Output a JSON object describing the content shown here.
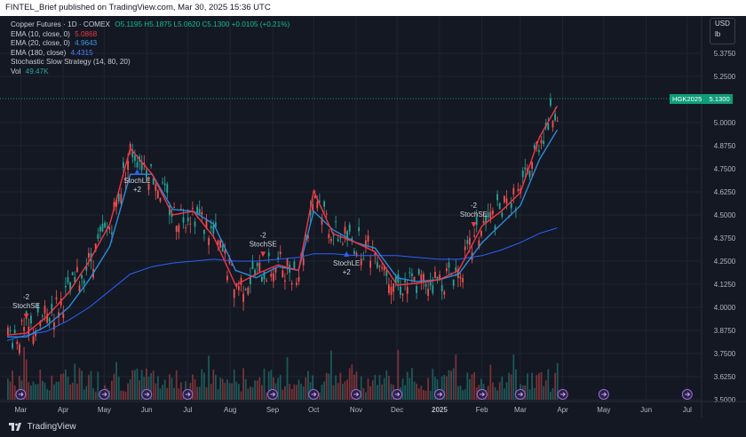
{
  "header": {
    "published_line": "FINTEL_Brief published on TradingView.com, Mar 30, 2025 15:36 UTC"
  },
  "legend": {
    "symbol": {
      "label": "Copper Futures · 1D · COMEX",
      "ohlc": "O5.1195 H5.1875 L5.0620 C5.1300 +0.0105 (+0.21%)"
    },
    "ema10": {
      "label": "EMA (10, close, 0)",
      "value": "5.0868",
      "color": "#f23645"
    },
    "ema20": {
      "label": "EMA (20, close, 0)",
      "value": "4.9643",
      "color": "#2b8bd8"
    },
    "ema180": {
      "label": "EMA (180, close)",
      "value": "4.4315",
      "color": "#2962ff"
    },
    "strategy": {
      "label": "Stochastic Slow Strategy (14, 80, 20)"
    },
    "volume": {
      "label": "Vol",
      "value": "49.47K",
      "color": "#26a69a"
    }
  },
  "unit": {
    "currency": "USD",
    "unit": "lb"
  },
  "price_tag": {
    "symbol": "HGK2025",
    "value": "5.1300",
    "color": "#0f9d79"
  },
  "footer": {
    "brand": "TradingView"
  },
  "signals": [
    {
      "qty": "-2",
      "label": "StochSE"
    },
    {
      "label": "StochLE",
      "qty": "+2"
    },
    {
      "qty": "-2",
      "label": "StochSE"
    },
    {
      "label": "StochLE",
      "qty": "+2"
    },
    {
      "qty": "-2",
      "label": "StochSE"
    }
  ],
  "chart_data": {
    "type": "line",
    "y_ticks": [
      "5.3750",
      "5.2500",
      "5.0000",
      "4.8750",
      "4.7500",
      "4.6250",
      "4.5000",
      "4.3750",
      "4.2500",
      "4.1250",
      "4.0000",
      "3.8750",
      "3.7500",
      "3.6250",
      "3.5000"
    ],
    "x_ticks": [
      "Mar",
      "Apr",
      "May",
      "Jun",
      "Jul",
      "Aug",
      "Sep",
      "Oct",
      "Nov",
      "Dec",
      "2025",
      "Feb",
      "Mar",
      "Apr",
      "May",
      "Jun",
      "Jul"
    ],
    "x": [
      "2024-02-20",
      "2024-03-05",
      "2024-03-20",
      "2024-04-05",
      "2024-04-20",
      "2024-05-05",
      "2024-05-20",
      "2024-06-05",
      "2024-06-20",
      "2024-07-05",
      "2024-07-20",
      "2024-08-05",
      "2024-08-20",
      "2024-09-05",
      "2024-09-20",
      "2024-10-01",
      "2024-10-15",
      "2024-11-01",
      "2024-11-15",
      "2024-12-01",
      "2024-12-15",
      "2025-01-01",
      "2025-01-15",
      "2025-02-01",
      "2025-02-15",
      "2025-03-01",
      "2025-03-15",
      "2025-03-28"
    ],
    "series": [
      {
        "name": "EMA (10, close, 0)",
        "color": "#f23645",
        "values": [
          3.85,
          3.86,
          3.95,
          4.08,
          4.25,
          4.45,
          4.86,
          4.72,
          4.5,
          4.52,
          4.38,
          4.12,
          4.18,
          4.23,
          4.2,
          4.63,
          4.4,
          4.35,
          4.3,
          4.12,
          4.13,
          4.15,
          4.2,
          4.44,
          4.52,
          4.62,
          4.92,
          5.09
        ]
      },
      {
        "name": "EMA (20, close, 0)",
        "color": "#2b8bd8",
        "values": [
          3.84,
          3.84,
          3.9,
          4.0,
          4.15,
          4.33,
          4.72,
          4.72,
          4.53,
          4.52,
          4.45,
          4.2,
          4.16,
          4.22,
          4.2,
          4.52,
          4.42,
          4.35,
          4.32,
          4.16,
          4.14,
          4.15,
          4.18,
          4.35,
          4.45,
          4.55,
          4.8,
          4.96
        ]
      },
      {
        "name": "EMA (180, close)",
        "color": "#2962ff",
        "values": [
          3.82,
          3.85,
          3.87,
          3.93,
          4.0,
          4.09,
          4.18,
          4.22,
          4.24,
          4.25,
          4.26,
          4.25,
          4.25,
          4.26,
          4.27,
          4.29,
          4.29,
          4.28,
          4.28,
          4.28,
          4.27,
          4.26,
          4.26,
          4.28,
          4.31,
          4.35,
          4.4,
          4.43
        ]
      }
    ],
    "last_close": 5.13
  }
}
